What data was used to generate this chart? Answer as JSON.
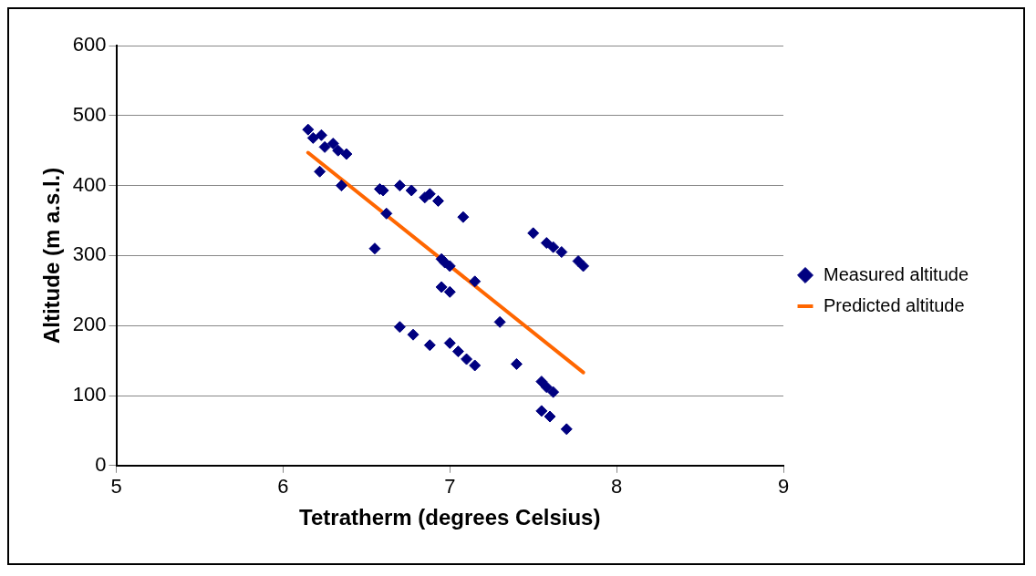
{
  "chart_data": {
    "type": "scatter",
    "xlabel": "Tetratherm (degrees Celsius)",
    "ylabel": "Altitude (m a.s.l.)",
    "xlim": [
      5,
      9
    ],
    "xticks": [
      5,
      6,
      7,
      8,
      9
    ],
    "ylim": [
      0,
      600
    ],
    "yticks": [
      0,
      100,
      200,
      300,
      400,
      500,
      600
    ],
    "grid": "y",
    "legend": "right",
    "series": [
      {
        "name": "Measured altitude",
        "type": "scatter",
        "marker": "diamond",
        "color": "#000080",
        "x": [
          6.15,
          6.18,
          6.23,
          6.22,
          6.25,
          6.3,
          6.33,
          6.38,
          6.35,
          6.55,
          6.58,
          6.6,
          6.62,
          6.7,
          6.77,
          6.85,
          6.88,
          6.93,
          6.95,
          6.97,
          7.0,
          6.95,
          7.0,
          7.08,
          7.15,
          7.3,
          7.4,
          6.7,
          6.78,
          6.88,
          7.0,
          7.05,
          7.1,
          7.15,
          7.5,
          7.58,
          7.62,
          7.67,
          7.77,
          7.8,
          7.55,
          7.58,
          7.62,
          7.55,
          7.6,
          7.7
        ],
        "values": [
          480,
          468,
          472,
          420,
          455,
          460,
          450,
          445,
          400,
          310,
          395,
          393,
          360,
          400,
          393,
          383,
          388,
          378,
          295,
          290,
          285,
          255,
          248,
          355,
          263,
          205,
          145,
          198,
          187,
          172,
          175,
          163,
          152,
          143,
          332,
          318,
          312,
          305,
          292,
          285,
          120,
          112,
          105,
          78,
          70,
          52
        ]
      },
      {
        "name": "Predicted altitude",
        "type": "line",
        "marker": "none",
        "line_style": "solid",
        "color": "#ff6600",
        "x": [
          6.15,
          7.8
        ],
        "values": [
          447,
          133
        ]
      }
    ]
  }
}
